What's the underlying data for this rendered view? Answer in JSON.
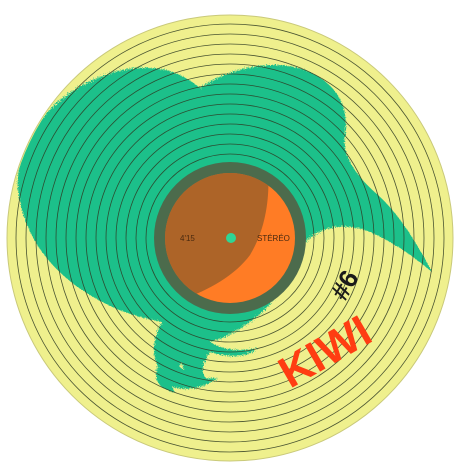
{
  "record": {
    "title": "KIWI",
    "issue": "#6",
    "duration": "4'15",
    "format": "STÉRÉO",
    "colors": {
      "vinyl": "#eff08d",
      "groove": "#2e3a22",
      "kiwi": "#1fc08a",
      "label": "#ff7c25",
      "label_shadow": "#4c6b4c",
      "spindle": "#2fd594",
      "title": "#ff3d12",
      "issue": "#1a1a1a"
    },
    "icons": [
      "kiwi-bird-icon",
      "vinyl-record-icon"
    ]
  }
}
